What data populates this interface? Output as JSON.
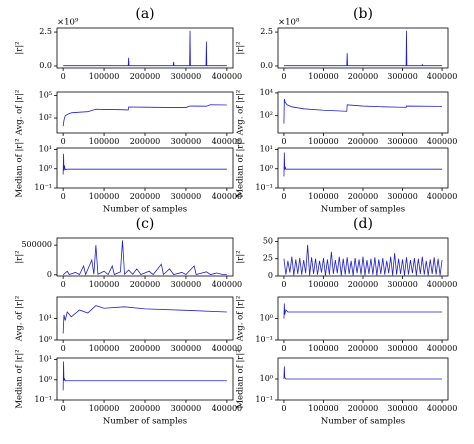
{
  "chart_data": [
    {
      "type": "line",
      "panel": "(a)",
      "ylabel": "|r|²",
      "offset": "×10⁹",
      "color": "#1f1fd0",
      "x": [
        0,
        159000,
        160000,
        161000,
        269000,
        270000,
        271000,
        309000,
        310000,
        311000,
        349000,
        350000,
        351000,
        400000
      ],
      "values": [
        0.02,
        0.02,
        0.6,
        0.02,
        0.02,
        0.3,
        0.02,
        0.02,
        2.6,
        0.02,
        0.02,
        1.8,
        0.02,
        0.02
      ],
      "xlim": [
        -15000,
        415000
      ],
      "xticks": [
        0,
        100000,
        200000,
        300000,
        400000
      ],
      "ylim": [
        -0.15,
        2.8
      ],
      "yticks": [
        {
          "value": 0,
          "label": "0.0"
        },
        2.5
      ]
    },
    {
      "type": "line",
      "ylabel": "Avg. of |r|²",
      "log": true,
      "color": "#1f1fd0",
      "x": [
        0,
        2000,
        5000,
        10000,
        20000,
        40000,
        60000,
        80000,
        100000,
        140000,
        159000,
        160000,
        200000,
        250000,
        300000,
        310000,
        350000,
        360000,
        400000
      ],
      "values": [
        8,
        50,
        200,
        300,
        500,
        600,
        700,
        1500,
        1400,
        1300,
        1200,
        3000,
        2800,
        2600,
        2500,
        4000,
        3800,
        6000,
        5500
      ],
      "xlim": [
        -15000,
        415000
      ],
      "xticks": [
        0,
        100000,
        200000,
        300000,
        400000
      ],
      "ylim": [
        1,
        300000
      ],
      "yticks": [
        {
          "value": 100,
          "label": "10²"
        },
        {
          "value": 100000,
          "label": "10⁵"
        }
      ]
    },
    {
      "type": "line",
      "ylabel": "Median of |r|²",
      "xlabel": "Number of samples",
      "log": true,
      "color": "#1f1fd0",
      "x": [
        0,
        1000,
        2000,
        3000,
        5000,
        10000,
        400000
      ],
      "values": [
        0.5,
        6,
        0.8,
        1.5,
        0.9,
        0.95,
        0.95
      ],
      "xlim": [
        -15000,
        415000
      ],
      "xticks": [
        0,
        100000,
        200000,
        300000,
        400000
      ],
      "ylim": [
        0.1,
        12
      ],
      "yticks": [
        {
          "value": 0.1,
          "label": "10⁻¹"
        },
        {
          "value": 1,
          "label": "10⁰"
        },
        {
          "value": 10,
          "label": "10¹"
        }
      ]
    },
    {
      "type": "line",
      "panel": "(b)",
      "ylabel": "|r|²",
      "offset": "×10⁸",
      "color": "#1f1fd0",
      "x": [
        0,
        159000,
        160000,
        161000,
        309000,
        310000,
        311000,
        349000,
        350000,
        351000,
        400000
      ],
      "values": [
        0.02,
        0.02,
        0.95,
        0.02,
        0.02,
        2.6,
        0.02,
        0.02,
        0.1,
        0.02,
        0.02
      ],
      "xlim": [
        -15000,
        415000
      ],
      "xticks": [
        0,
        100000,
        200000,
        300000,
        400000
      ],
      "ylim": [
        -0.15,
        2.8
      ],
      "yticks": [
        {
          "value": 0,
          "label": "0.0"
        },
        2.5
      ]
    },
    {
      "type": "line",
      "ylabel": "Avg. of |r|²",
      "log": true,
      "color": "#1f1fd0",
      "x": [
        0,
        1000,
        3000,
        8000,
        20000,
        50000,
        100000,
        150000,
        159000,
        160000,
        200000,
        250000,
        300000,
        309000,
        310000,
        400000
      ],
      "values": [
        20,
        3000,
        1500,
        900,
        600,
        400,
        300,
        250,
        240,
        900,
        700,
        600,
        550,
        540,
        700,
        650
      ],
      "xlim": [
        -15000,
        415000
      ],
      "xticks": [
        0,
        100000,
        200000,
        300000,
        400000
      ],
      "ylim": [
        3,
        12000
      ],
      "yticks": [
        {
          "value": 100,
          "label": "10²"
        },
        {
          "value": 10000,
          "label": "10⁴"
        }
      ]
    },
    {
      "type": "line",
      "ylabel": "Median of |r|²",
      "xlabel": "Number of samples",
      "log": true,
      "color": "#1f1fd0",
      "x": [
        0,
        1000,
        2000,
        3000,
        5000,
        10000,
        400000
      ],
      "values": [
        0.4,
        7,
        0.9,
        1.3,
        0.95,
        0.95,
        0.95
      ],
      "xlim": [
        -15000,
        415000
      ],
      "xticks": [
        0,
        100000,
        200000,
        300000,
        400000
      ],
      "ylim": [
        0.1,
        12
      ],
      "yticks": [
        {
          "value": 0.1,
          "label": "10⁻¹"
        },
        {
          "value": 1,
          "label": "10⁰"
        },
        {
          "value": 10,
          "label": "10¹"
        }
      ]
    },
    {
      "type": "line",
      "panel": "(c)",
      "ylabel": "|r|²",
      "color": "#1f1fd0",
      "x": [
        0,
        10000,
        15000,
        30000,
        40000,
        50000,
        55000,
        70000,
        75000,
        80000,
        85000,
        100000,
        110000,
        120000,
        125000,
        140000,
        145000,
        150000,
        160000,
        170000,
        180000,
        190000,
        210000,
        220000,
        240000,
        245000,
        260000,
        270000,
        290000,
        300000,
        320000,
        325000,
        350000,
        360000,
        375000,
        390000,
        400000
      ],
      "values": [
        0,
        60000,
        5000,
        40000,
        5000,
        150000,
        5000,
        250000,
        10000,
        500000,
        10000,
        60000,
        5000,
        150000,
        5000,
        50000,
        580000,
        10000,
        80000,
        10000,
        100000,
        5000,
        60000,
        5000,
        180000,
        5000,
        100000,
        5000,
        40000,
        5000,
        150000,
        5000,
        50000,
        5000,
        30000,
        5000,
        5000
      ],
      "xlim": [
        -15000,
        415000
      ],
      "xticks": [
        0,
        100000,
        200000,
        300000,
        400000
      ],
      "ylim": [
        -20000,
        620000
      ],
      "yticks": [
        0,
        500000
      ]
    },
    {
      "type": "line",
      "ylabel": "Avg. of |r|²",
      "log": true,
      "color": "#1f1fd0",
      "x": [
        0,
        2000,
        5000,
        10000,
        20000,
        40000,
        60000,
        80000,
        100000,
        150000,
        200000,
        300000,
        400000
      ],
      "values": [
        2,
        15,
        8,
        20,
        12,
        25,
        18,
        40,
        30,
        35,
        28,
        24,
        20
      ],
      "xlim": [
        -15000,
        415000
      ],
      "xticks": [
        0,
        100000,
        200000,
        300000,
        400000
      ],
      "ylim": [
        1,
        100
      ],
      "yticks": [
        {
          "value": 1,
          "label": "10⁰"
        },
        {
          "value": 10,
          "label": "10¹"
        }
      ]
    },
    {
      "type": "line",
      "ylabel": "Median of |r|²",
      "xlabel": "Number of samples",
      "log": true,
      "color": "#1f1fd0",
      "x": [
        0,
        1000,
        2000,
        3000,
        5000,
        10000,
        400000
      ],
      "values": [
        0.3,
        8,
        0.9,
        1.2,
        0.9,
        0.9,
        0.9
      ],
      "xlim": [
        -15000,
        415000
      ],
      "xticks": [
        0,
        100000,
        200000,
        300000,
        400000
      ],
      "ylim": [
        0.1,
        12
      ],
      "yticks": [
        {
          "value": 0.1,
          "label": "10⁻¹"
        },
        {
          "value": 1,
          "label": "10⁰"
        },
        {
          "value": 10,
          "label": "10¹"
        }
      ]
    },
    {
      "type": "line",
      "panel": "(d)",
      "ylabel": "|r|²",
      "color": "#1f1fd0",
      "x": [
        0,
        5000,
        10000,
        15000,
        20000,
        25000,
        30000,
        35000,
        40000,
        45000,
        50000,
        55000,
        60000,
        65000,
        70000,
        75000,
        80000,
        85000,
        90000,
        95000,
        100000,
        105000,
        110000,
        115000,
        120000,
        125000,
        130000,
        135000,
        140000,
        145000,
        150000,
        155000,
        160000,
        165000,
        170000,
        175000,
        180000,
        185000,
        190000,
        195000,
        200000,
        205000,
        210000,
        215000,
        220000,
        225000,
        230000,
        235000,
        240000,
        245000,
        250000,
        255000,
        260000,
        265000,
        270000,
        275000,
        280000,
        285000,
        290000,
        295000,
        300000,
        305000,
        310000,
        315000,
        320000,
        325000,
        330000,
        335000,
        340000,
        345000,
        350000,
        355000,
        360000,
        365000,
        370000,
        375000,
        380000,
        385000,
        390000,
        395000,
        400000
      ],
      "values": [
        25,
        2,
        22,
        5,
        28,
        1,
        24,
        3,
        26,
        2,
        23,
        4,
        45,
        1,
        27,
        3,
        25,
        2,
        22,
        5,
        26,
        1,
        24,
        2,
        35,
        3,
        23,
        4,
        28,
        1,
        25,
        2,
        27,
        3,
        22,
        1,
        26,
        4,
        24,
        2,
        28,
        1,
        23,
        3,
        25,
        2,
        27,
        1,
        24,
        3,
        26,
        2,
        22,
        4,
        28,
        1,
        33,
        2,
        25,
        3,
        24,
        1,
        27,
        2,
        23,
        4,
        26,
        1,
        25,
        3,
        28,
        2,
        22,
        1,
        24,
        3,
        27,
        2,
        25,
        1,
        23
      ],
      "xlim": [
        -15000,
        415000
      ],
      "xticks": [
        0,
        100000,
        200000,
        300000,
        400000
      ],
      "ylim": [
        0,
        55
      ],
      "yticks": [
        0,
        25,
        50
      ]
    },
    {
      "type": "line",
      "ylabel": "Avg. of |r|²",
      "log": true,
      "color": "#1f1fd0",
      "x": [
        0,
        1000,
        2000,
        5000,
        10000,
        400000
      ],
      "values": [
        1,
        5,
        1.5,
        2.5,
        2,
        2
      ],
      "xlim": [
        -15000,
        415000
      ],
      "xticks": [
        0,
        100000,
        200000,
        300000,
        400000
      ],
      "ylim": [
        0.1,
        10
      ],
      "yticks": [
        {
          "value": 0.1,
          "label": "10⁻¹"
        },
        {
          "value": 1,
          "label": "10⁰"
        }
      ]
    },
    {
      "type": "line",
      "ylabel": "Median of |r|²",
      "xlabel": "Number of samples",
      "log": true,
      "color": "#1f1fd0",
      "x": [
        0,
        1000,
        2000,
        5000,
        400000
      ],
      "values": [
        1,
        4,
        1.2,
        1,
        1
      ],
      "xlim": [
        -15000,
        415000
      ],
      "xticks": [
        0,
        100000,
        200000,
        300000,
        400000
      ],
      "ylim": [
        0.1,
        10
      ],
      "yticks": [
        {
          "value": 0.1,
          "label": "10⁻¹"
        },
        {
          "value": 1,
          "label": "10⁰"
        }
      ]
    }
  ]
}
